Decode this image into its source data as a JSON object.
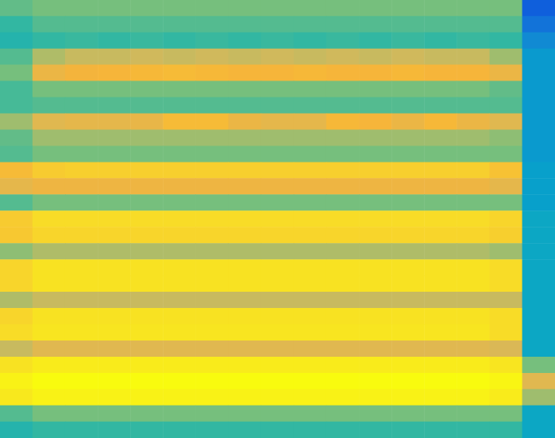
{
  "chart_data": {
    "type": "heatmap",
    "tick_labels": false,
    "grid": false,
    "zlim": [
      0,
      1
    ],
    "z": [
      [
        0.52,
        0.55,
        0.55,
        0.55,
        0.55,
        0.55,
        0.55,
        0.55,
        0.55,
        0.55,
        0.55,
        0.55,
        0.55,
        0.55,
        0.55,
        0.55,
        0.12
      ],
      [
        0.45,
        0.5,
        0.5,
        0.5,
        0.5,
        0.5,
        0.5,
        0.5,
        0.5,
        0.5,
        0.5,
        0.5,
        0.5,
        0.5,
        0.5,
        0.5,
        0.18
      ],
      [
        0.42,
        0.45,
        0.46,
        0.45,
        0.46,
        0.45,
        0.46,
        0.45,
        0.46,
        0.45,
        0.46,
        0.45,
        0.46,
        0.45,
        0.46,
        0.45,
        0.25
      ],
      [
        0.5,
        0.62,
        0.65,
        0.65,
        0.66,
        0.65,
        0.66,
        0.65,
        0.66,
        0.65,
        0.66,
        0.65,
        0.66,
        0.65,
        0.65,
        0.6,
        0.3
      ],
      [
        0.55,
        0.74,
        0.77,
        0.78,
        0.79,
        0.8,
        0.79,
        0.78,
        0.78,
        0.79,
        0.78,
        0.78,
        0.79,
        0.78,
        0.78,
        0.74,
        0.3
      ],
      [
        0.48,
        0.55,
        0.55,
        0.55,
        0.55,
        0.55,
        0.55,
        0.55,
        0.55,
        0.55,
        0.55,
        0.55,
        0.55,
        0.55,
        0.55,
        0.52,
        0.3
      ],
      [
        0.48,
        0.5,
        0.5,
        0.5,
        0.5,
        0.5,
        0.5,
        0.5,
        0.5,
        0.5,
        0.5,
        0.5,
        0.5,
        0.5,
        0.5,
        0.5,
        0.3
      ],
      [
        0.6,
        0.7,
        0.72,
        0.72,
        0.73,
        0.8,
        0.8,
        0.74,
        0.72,
        0.72,
        0.79,
        0.78,
        0.74,
        0.79,
        0.74,
        0.7,
        0.3
      ],
      [
        0.52,
        0.6,
        0.6,
        0.6,
        0.6,
        0.6,
        0.6,
        0.6,
        0.6,
        0.6,
        0.6,
        0.6,
        0.6,
        0.6,
        0.6,
        0.58,
        0.3
      ],
      [
        0.5,
        0.55,
        0.55,
        0.55,
        0.55,
        0.55,
        0.55,
        0.55,
        0.55,
        0.55,
        0.55,
        0.55,
        0.55,
        0.55,
        0.55,
        0.55,
        0.3
      ],
      [
        0.8,
        0.85,
        0.86,
        0.86,
        0.86,
        0.86,
        0.86,
        0.86,
        0.86,
        0.86,
        0.86,
        0.86,
        0.86,
        0.86,
        0.86,
        0.82,
        0.32
      ],
      [
        0.72,
        0.75,
        0.75,
        0.75,
        0.75,
        0.75,
        0.75,
        0.75,
        0.75,
        0.75,
        0.75,
        0.75,
        0.75,
        0.75,
        0.75,
        0.72,
        0.32
      ],
      [
        0.5,
        0.55,
        0.55,
        0.55,
        0.55,
        0.55,
        0.55,
        0.55,
        0.55,
        0.55,
        0.55,
        0.55,
        0.55,
        0.55,
        0.55,
        0.55,
        0.32
      ],
      [
        0.85,
        0.9,
        0.9,
        0.9,
        0.9,
        0.9,
        0.9,
        0.9,
        0.9,
        0.9,
        0.9,
        0.9,
        0.9,
        0.9,
        0.9,
        0.88,
        0.35
      ],
      [
        0.84,
        0.88,
        0.88,
        0.88,
        0.88,
        0.88,
        0.88,
        0.88,
        0.88,
        0.88,
        0.88,
        0.88,
        0.88,
        0.88,
        0.88,
        0.86,
        0.35
      ],
      [
        0.58,
        0.62,
        0.62,
        0.62,
        0.62,
        0.62,
        0.62,
        0.62,
        0.62,
        0.62,
        0.62,
        0.62,
        0.62,
        0.62,
        0.62,
        0.6,
        0.35
      ],
      [
        0.88,
        0.92,
        0.92,
        0.92,
        0.92,
        0.92,
        0.92,
        0.92,
        0.92,
        0.92,
        0.92,
        0.92,
        0.92,
        0.92,
        0.92,
        0.9,
        0.35
      ],
      [
        0.88,
        0.92,
        0.92,
        0.92,
        0.92,
        0.92,
        0.92,
        0.92,
        0.92,
        0.92,
        0.92,
        0.92,
        0.92,
        0.92,
        0.92,
        0.9,
        0.35
      ],
      [
        0.62,
        0.65,
        0.65,
        0.65,
        0.65,
        0.65,
        0.65,
        0.65,
        0.65,
        0.65,
        0.65,
        0.65,
        0.65,
        0.65,
        0.65,
        0.65,
        0.35
      ],
      [
        0.88,
        0.92,
        0.92,
        0.92,
        0.92,
        0.92,
        0.92,
        0.92,
        0.92,
        0.92,
        0.92,
        0.92,
        0.92,
        0.92,
        0.92,
        0.9,
        0.35
      ],
      [
        0.9,
        0.93,
        0.93,
        0.93,
        0.93,
        0.93,
        0.93,
        0.93,
        0.93,
        0.93,
        0.93,
        0.93,
        0.93,
        0.93,
        0.93,
        0.9,
        0.35
      ],
      [
        0.65,
        0.7,
        0.7,
        0.7,
        0.7,
        0.7,
        0.7,
        0.7,
        0.7,
        0.7,
        0.7,
        0.7,
        0.7,
        0.7,
        0.7,
        0.68,
        0.35
      ],
      [
        0.92,
        0.95,
        0.95,
        0.95,
        0.95,
        0.95,
        0.95,
        0.95,
        0.95,
        0.95,
        0.95,
        0.95,
        0.95,
        0.95,
        0.95,
        0.93,
        0.55
      ],
      [
        0.97,
        1.0,
        1.0,
        1.0,
        1.0,
        1.0,
        1.0,
        1.0,
        1.0,
        1.0,
        1.0,
        1.0,
        1.0,
        1.0,
        1.0,
        0.98,
        0.7
      ],
      [
        0.94,
        0.97,
        0.97,
        0.97,
        0.97,
        0.97,
        0.97,
        0.97,
        0.97,
        0.97,
        0.97,
        0.97,
        0.97,
        0.97,
        0.97,
        0.95,
        0.6
      ],
      [
        0.5,
        0.55,
        0.55,
        0.55,
        0.55,
        0.55,
        0.55,
        0.55,
        0.55,
        0.55,
        0.55,
        0.55,
        0.55,
        0.55,
        0.55,
        0.55,
        0.35
      ],
      [
        0.42,
        0.45,
        0.45,
        0.45,
        0.45,
        0.45,
        0.45,
        0.45,
        0.45,
        0.45,
        0.45,
        0.45,
        0.45,
        0.45,
        0.45,
        0.45,
        0.35
      ]
    ]
  }
}
